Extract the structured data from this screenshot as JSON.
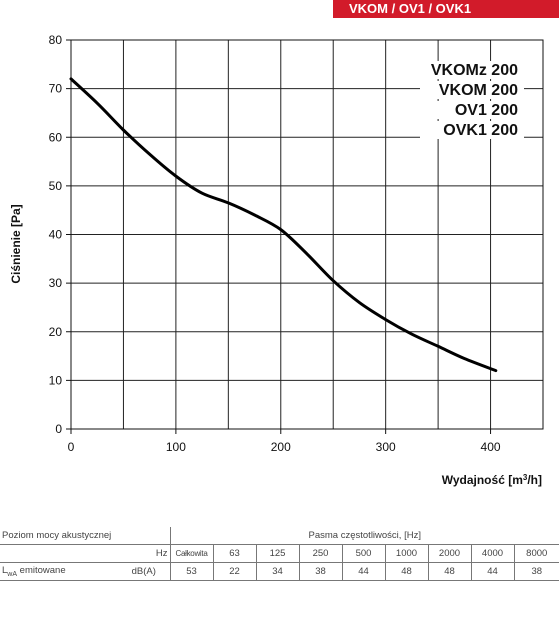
{
  "header": {
    "title": "VKOM / OV1 / OVK1"
  },
  "models": [
    "VKOMz 200",
    "VKOM 200",
    "OV1 200",
    "OVK1 200"
  ],
  "chart_data": {
    "type": "line",
    "xlabel_prefix": "Wydajność [m",
    "xlabel_sup": "3",
    "xlabel_suffix": "/h]",
    "ylabel": "Ciśnienie [Pa]",
    "xlim": [
      0,
      450
    ],
    "ylim": [
      0,
      80
    ],
    "xticks": [
      0,
      100,
      200,
      300,
      400
    ],
    "yticks": [
      0,
      10,
      20,
      30,
      40,
      50,
      60,
      70,
      80
    ],
    "grid": true,
    "series": [
      {
        "x": [
          0,
          25,
          50,
          75,
          100,
          125,
          150,
          175,
          200,
          225,
          250,
          275,
          300,
          325,
          350,
          375,
          405
        ],
        "y": [
          72,
          67,
          61.5,
          56.5,
          52,
          48.5,
          46.5,
          44,
          41,
          36,
          30.5,
          26,
          22.5,
          19.5,
          17,
          14.5,
          12
        ]
      }
    ]
  },
  "acoustic": {
    "label_power": "Poziom mocy akustycznej",
    "label_bands": "Pasma częstotliwości, [Hz]",
    "hz_label": "Hz",
    "total_label": "Całkowita",
    "bands": [
      "63",
      "125",
      "250",
      "500",
      "1000",
      "2000",
      "4000",
      "8000"
    ],
    "row_label_prefix": "L",
    "row_label_sub": "wA",
    "row_label_suffix": " emitowane",
    "unit": "dB(A)",
    "total": "53",
    "values": [
      "22",
      "34",
      "38",
      "44",
      "48",
      "48",
      "44",
      "38"
    ]
  }
}
